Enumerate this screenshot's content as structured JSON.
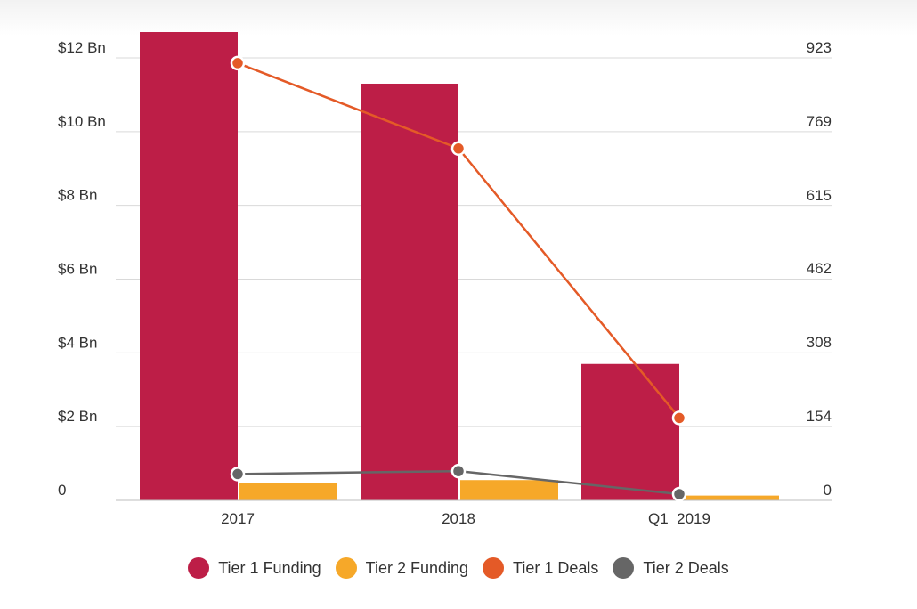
{
  "chart_data": {
    "type": "bar",
    "categories": [
      "2017",
      "2018",
      "Q1  2019"
    ],
    "series": [
      {
        "name": "Tier 1 Funding",
        "kind": "bar",
        "axis": "left",
        "color": "#bd1e47",
        "values": [
          12.7,
          11.3,
          3.7
        ]
      },
      {
        "name": "Tier 2 Funding",
        "kind": "bar",
        "axis": "left",
        "color": "#f6a829",
        "values": [
          0.48,
          0.55,
          0.13
        ]
      },
      {
        "name": "Tier 1 Deals",
        "kind": "line",
        "axis": "right",
        "color": "#e45a27",
        "values": [
          912,
          734,
          172
        ]
      },
      {
        "name": "Tier 2 Deals",
        "kind": "line",
        "axis": "right",
        "color": "#666666",
        "values": [
          55,
          61,
          13
        ]
      }
    ],
    "y_left": {
      "ticks": [
        0,
        2,
        4,
        6,
        8,
        10,
        12
      ],
      "tick_labels": [
        "0",
        "$2 Bn",
        "$4 Bn",
        "$6 Bn",
        "$8 Bn",
        "$10 Bn",
        "$12 Bn"
      ],
      "range": [
        0,
        12
      ]
    },
    "y_right": {
      "ticks": [
        0,
        154,
        308,
        462,
        615,
        769,
        923
      ],
      "tick_labels": [
        "0",
        "154",
        "308",
        "462",
        "615",
        "769",
        "923"
      ],
      "range": [
        0,
        923
      ]
    },
    "grid": true,
    "legend_position": "bottom-center",
    "title": "",
    "xlabel": "",
    "ylabel": ""
  }
}
